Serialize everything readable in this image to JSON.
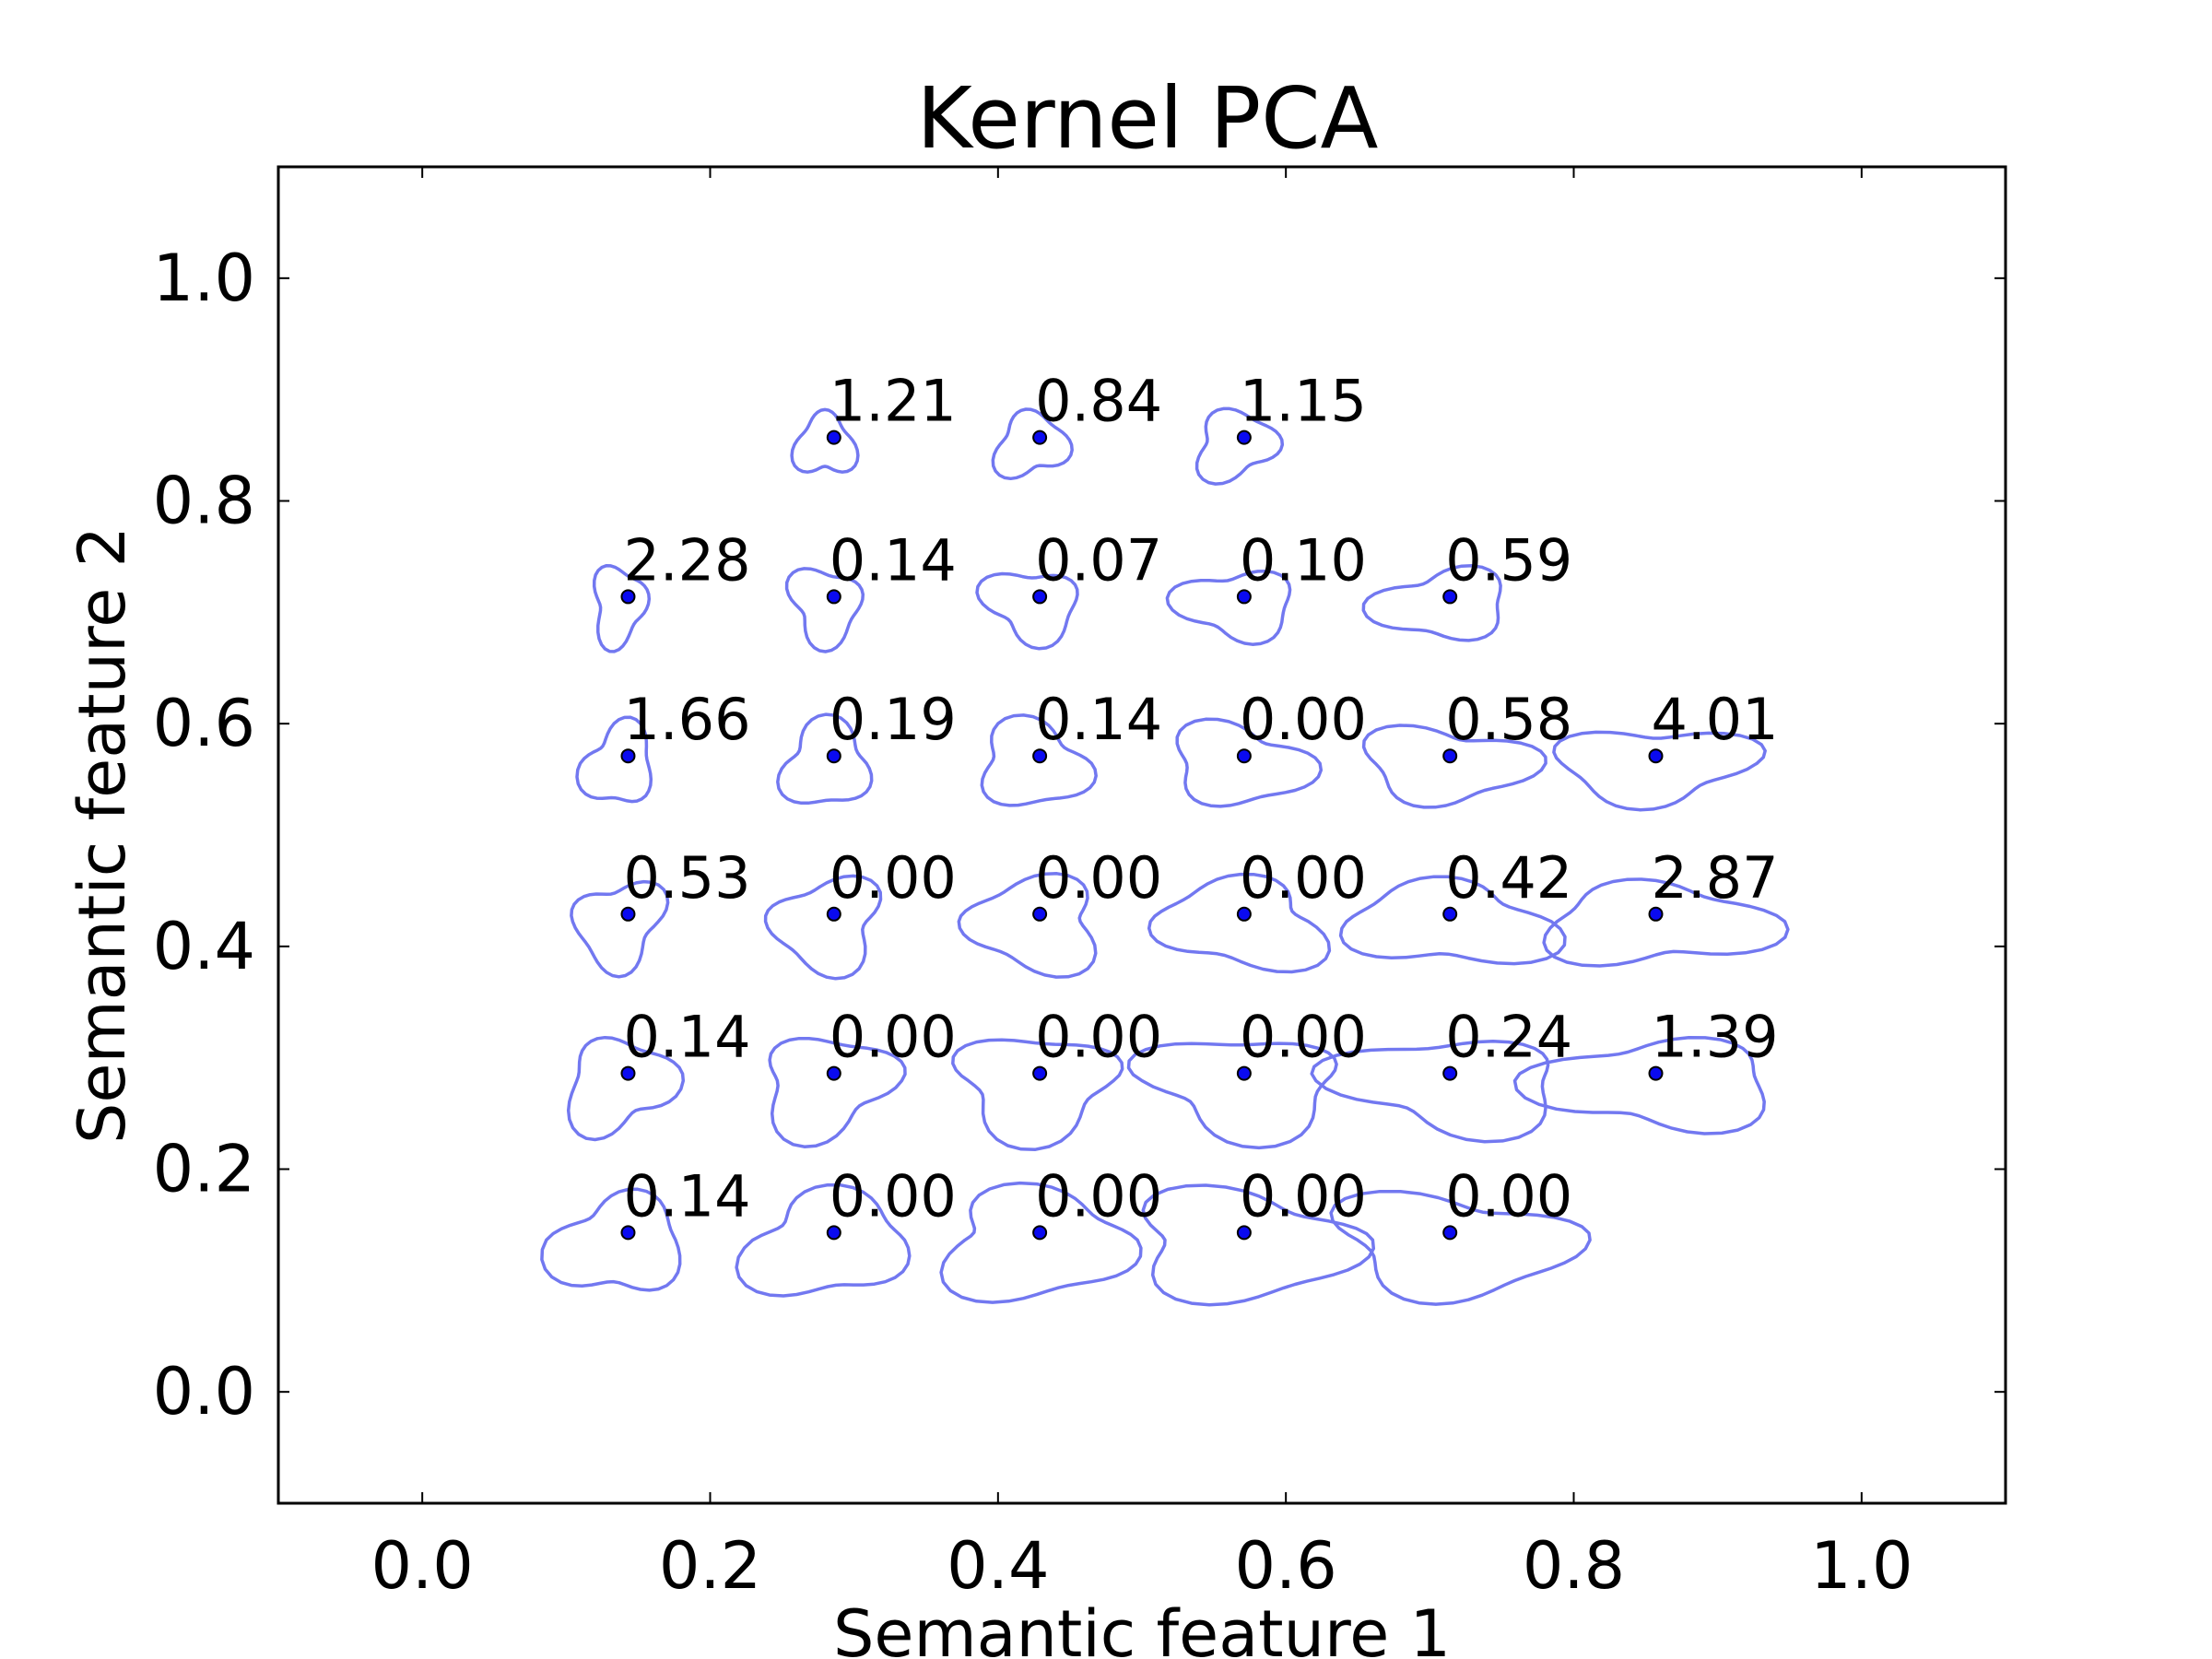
{
  "chart_data": {
    "type": "scatter",
    "title": "Kernel PCA",
    "xlabel": "Semantic feature 1",
    "ylabel": "Semantic feature 2",
    "xlim": [
      -0.1,
      1.1
    ],
    "ylim": [
      -0.1,
      1.1
    ],
    "xticks": [
      "0.0",
      "0.2",
      "0.4",
      "0.6",
      "0.8",
      "1.0"
    ],
    "yticks": [
      "0.0",
      "0.2",
      "0.4",
      "0.6",
      "0.8",
      "1.0"
    ],
    "grid": false,
    "points": [
      {
        "x": 0.286,
        "y": 0.857,
        "label": "1.21"
      },
      {
        "x": 0.429,
        "y": 0.857,
        "label": "0.84"
      },
      {
        "x": 0.571,
        "y": 0.857,
        "label": "1.15"
      },
      {
        "x": 0.143,
        "y": 0.714,
        "label": "2.28"
      },
      {
        "x": 0.286,
        "y": 0.714,
        "label": "0.14"
      },
      {
        "x": 0.429,
        "y": 0.714,
        "label": "0.07"
      },
      {
        "x": 0.571,
        "y": 0.714,
        "label": "0.10"
      },
      {
        "x": 0.714,
        "y": 0.714,
        "label": "0.59"
      },
      {
        "x": 0.143,
        "y": 0.571,
        "label": "1.66"
      },
      {
        "x": 0.286,
        "y": 0.571,
        "label": "0.19"
      },
      {
        "x": 0.429,
        "y": 0.571,
        "label": "0.14"
      },
      {
        "x": 0.571,
        "y": 0.571,
        "label": "0.00"
      },
      {
        "x": 0.714,
        "y": 0.571,
        "label": "0.58"
      },
      {
        "x": 0.857,
        "y": 0.571,
        "label": "4.01"
      },
      {
        "x": 0.143,
        "y": 0.429,
        "label": "0.53"
      },
      {
        "x": 0.286,
        "y": 0.429,
        "label": "0.00"
      },
      {
        "x": 0.429,
        "y": 0.429,
        "label": "0.00"
      },
      {
        "x": 0.571,
        "y": 0.429,
        "label": "0.00"
      },
      {
        "x": 0.714,
        "y": 0.429,
        "label": "0.42"
      },
      {
        "x": 0.857,
        "y": 0.429,
        "label": "2.87"
      },
      {
        "x": 0.143,
        "y": 0.286,
        "label": "0.14"
      },
      {
        "x": 0.286,
        "y": 0.286,
        "label": "0.00"
      },
      {
        "x": 0.429,
        "y": 0.286,
        "label": "0.00"
      },
      {
        "x": 0.571,
        "y": 0.286,
        "label": "0.00"
      },
      {
        "x": 0.714,
        "y": 0.286,
        "label": "0.24"
      },
      {
        "x": 0.857,
        "y": 0.286,
        "label": "1.39"
      },
      {
        "x": 0.143,
        "y": 0.143,
        "label": "0.14"
      },
      {
        "x": 0.286,
        "y": 0.143,
        "label": "0.00"
      },
      {
        "x": 0.429,
        "y": 0.143,
        "label": "0.00"
      },
      {
        "x": 0.571,
        "y": 0.143,
        "label": "0.00"
      },
      {
        "x": 0.714,
        "y": 0.143,
        "label": "0.00"
      }
    ],
    "colors": {
      "point": "#0a0af0",
      "shape_outline": "#7278f0",
      "text": "#000000"
    }
  }
}
